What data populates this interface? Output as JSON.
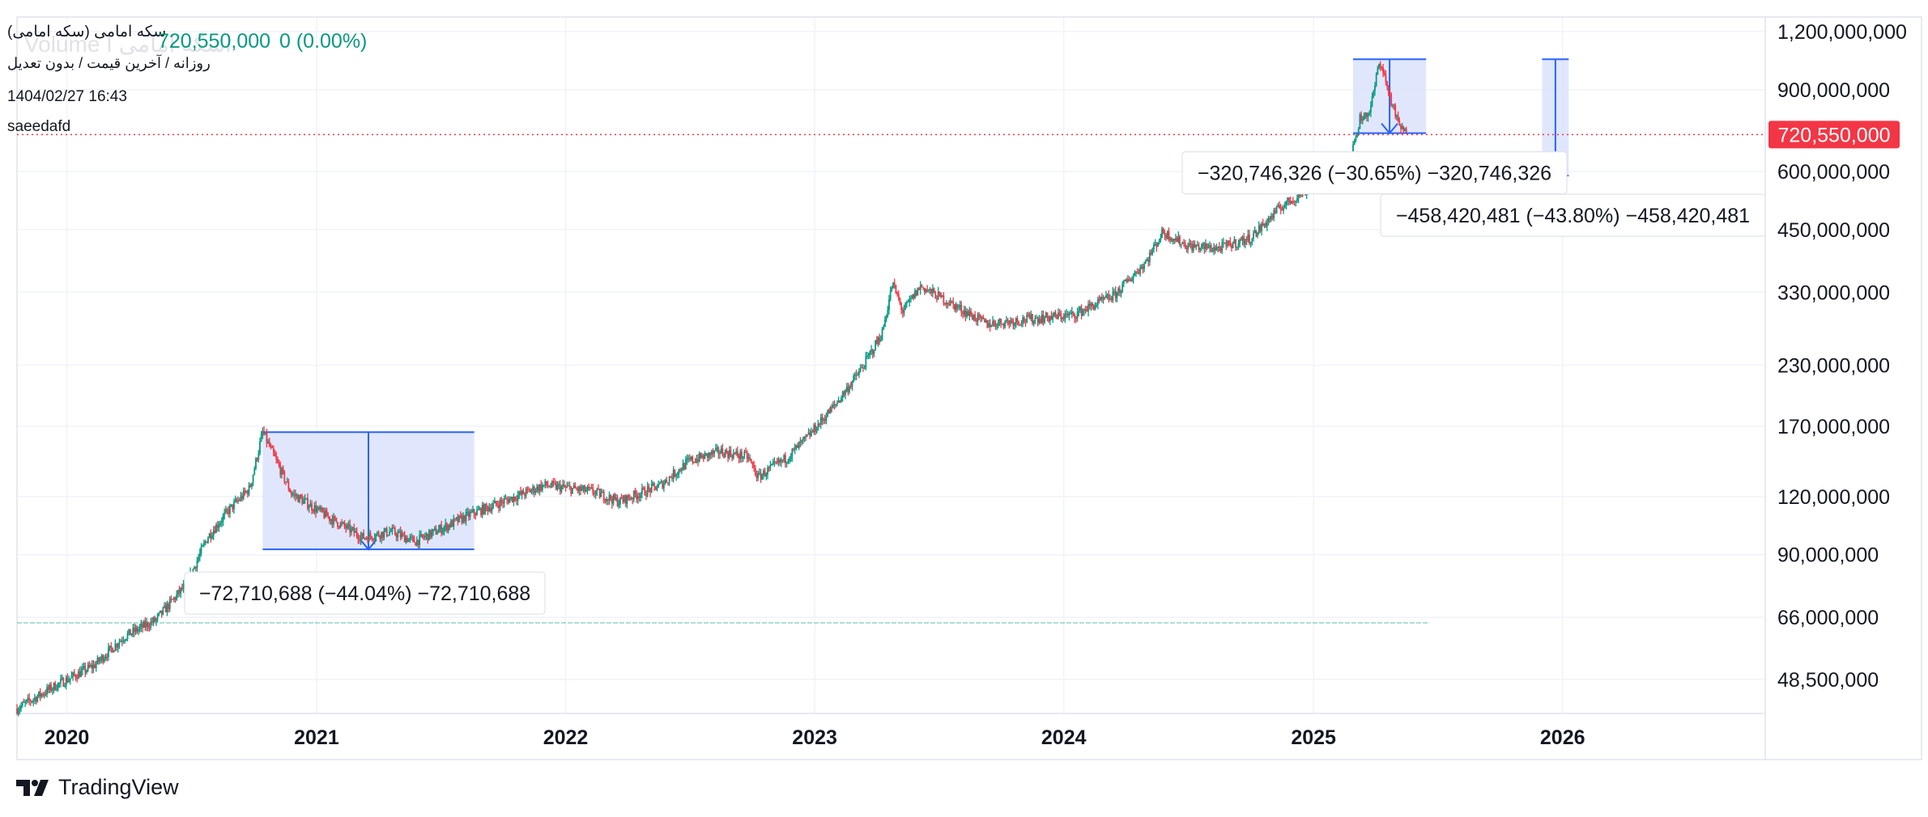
{
  "header": {
    "symbol": "سکه امامی (سکه امامی)",
    "timeframe": "روزانه / آخرین قیمت / بدون تعدیل",
    "datetime": "1404/02/27 16:43",
    "author": "saeedafd",
    "price": "720,550,000",
    "change": "0 (0.00%)",
    "watermark": "Volume  اسکه امامی ا"
  },
  "branding": {
    "name": "TradingView",
    "icon": "tradingview-logo-icon"
  },
  "colors": {
    "up": "#089981",
    "down": "#f23645",
    "measure_fill": "#dbe3fc",
    "measure_line": "#2962ff",
    "last_price_label": "#f23645"
  },
  "chart_data": {
    "type": "candlestick",
    "scale": "log",
    "y_axis_position": "right",
    "ylim": [
      41000000,
      1290000000
    ],
    "y_ticks": [
      {
        "value": 1200000000,
        "label": "1,200,000,000"
      },
      {
        "value": 900000000,
        "label": "900,000,000"
      },
      {
        "value": 600000000,
        "label": "600,000,000"
      },
      {
        "value": 450000000,
        "label": "450,000,000"
      },
      {
        "value": 330000000,
        "label": "330,000,000"
      },
      {
        "value": 230000000,
        "label": "230,000,000"
      },
      {
        "value": 170000000,
        "label": "170,000,000"
      },
      {
        "value": 120000000,
        "label": "120,000,000"
      },
      {
        "value": 90000000,
        "label": "90,000,000"
      },
      {
        "value": 66000000,
        "label": "66,000,000"
      },
      {
        "value": 48500000,
        "label": "48,500,000"
      }
    ],
    "x_ticks": [
      "2020",
      "2021",
      "2022",
      "2023",
      "2024",
      "2025",
      "2026"
    ],
    "x_range": [
      "2019-10-20",
      "2026-10-25"
    ],
    "last_price": {
      "value": 720550000,
      "label": "720,550,000"
    },
    "series_trend": [
      [
        "2019-10-20",
        42000000
      ],
      [
        "2019-12-15",
        47000000
      ],
      [
        "2020-02-10",
        52000000
      ],
      [
        "2020-03-25",
        60000000
      ],
      [
        "2020-05-10",
        65000000
      ],
      [
        "2020-06-25",
        78000000
      ],
      [
        "2020-07-25",
        98000000
      ],
      [
        "2020-08-25",
        112000000
      ],
      [
        "2020-09-25",
        125000000
      ],
      [
        "2020-10-14",
        165000000
      ],
      [
        "2020-11-01",
        145000000
      ],
      [
        "2020-11-25",
        122000000
      ],
      [
        "2021-01-20",
        108000000
      ],
      [
        "2021-03-10",
        98000000
      ],
      [
        "2021-04-20",
        101000000
      ],
      [
        "2021-05-25",
        96000000
      ],
      [
        "2021-07-01",
        102000000
      ],
      [
        "2021-08-15",
        110000000
      ],
      [
        "2021-10-01",
        117000000
      ],
      [
        "2021-12-01",
        127000000
      ],
      [
        "2022-02-10",
        123000000
      ],
      [
        "2022-03-20",
        117000000
      ],
      [
        "2022-05-20",
        127000000
      ],
      [
        "2022-07-01",
        143000000
      ],
      [
        "2022-08-15",
        150000000
      ],
      [
        "2022-09-25",
        146000000
      ],
      [
        "2022-10-10",
        132000000
      ],
      [
        "2022-11-20",
        145000000
      ],
      [
        "2022-12-20",
        160000000
      ],
      [
        "2023-02-01",
        190000000
      ],
      [
        "2023-03-10",
        225000000
      ],
      [
        "2023-04-10",
        270000000
      ],
      [
        "2023-04-25",
        345000000
      ],
      [
        "2023-05-10",
        300000000
      ],
      [
        "2023-06-05",
        340000000
      ],
      [
        "2023-07-15",
        315000000
      ],
      [
        "2023-09-10",
        282000000
      ],
      [
        "2023-11-01",
        288000000
      ],
      [
        "2024-01-15",
        295000000
      ],
      [
        "2024-03-15",
        325000000
      ],
      [
        "2024-05-01",
        385000000
      ],
      [
        "2024-05-25",
        445000000
      ],
      [
        "2024-07-01",
        415000000
      ],
      [
        "2024-08-15",
        410000000
      ],
      [
        "2024-10-01",
        432000000
      ],
      [
        "2024-11-15",
        505000000
      ],
      [
        "2024-12-20",
        545000000
      ],
      [
        "2025-01-25",
        600000000
      ],
      [
        "2025-02-25",
        640000000
      ],
      [
        "2025-03-10",
        780000000
      ],
      [
        "2025-03-25",
        810000000
      ],
      [
        "2025-04-08",
        1046000000
      ],
      [
        "2025-04-20",
        900000000
      ],
      [
        "2025-05-05",
        760000000
      ],
      [
        "2025-05-17",
        720550000
      ]
    ],
    "measurements": [
      {
        "label": "−72,710,688 (−44.04%) −72,710,688",
        "x_start": "2020-10-14",
        "x_end": "2021-08-20",
        "y_from": 165100000,
        "y_to": 92389312
      },
      {
        "label": "−320,746,326 (−30.65%) −320,746,326",
        "x_start": "2025-02-28",
        "x_end": "2025-06-15",
        "y_from": 1046400000,
        "y_to": 725653674
      },
      {
        "label": "−458,420,481 (−43.80%) −458,420,481",
        "x_start": "2025-12-02",
        "x_end": "2026-01-10",
        "y_from": 1046400000,
        "y_to": 587979519
      }
    ]
  }
}
